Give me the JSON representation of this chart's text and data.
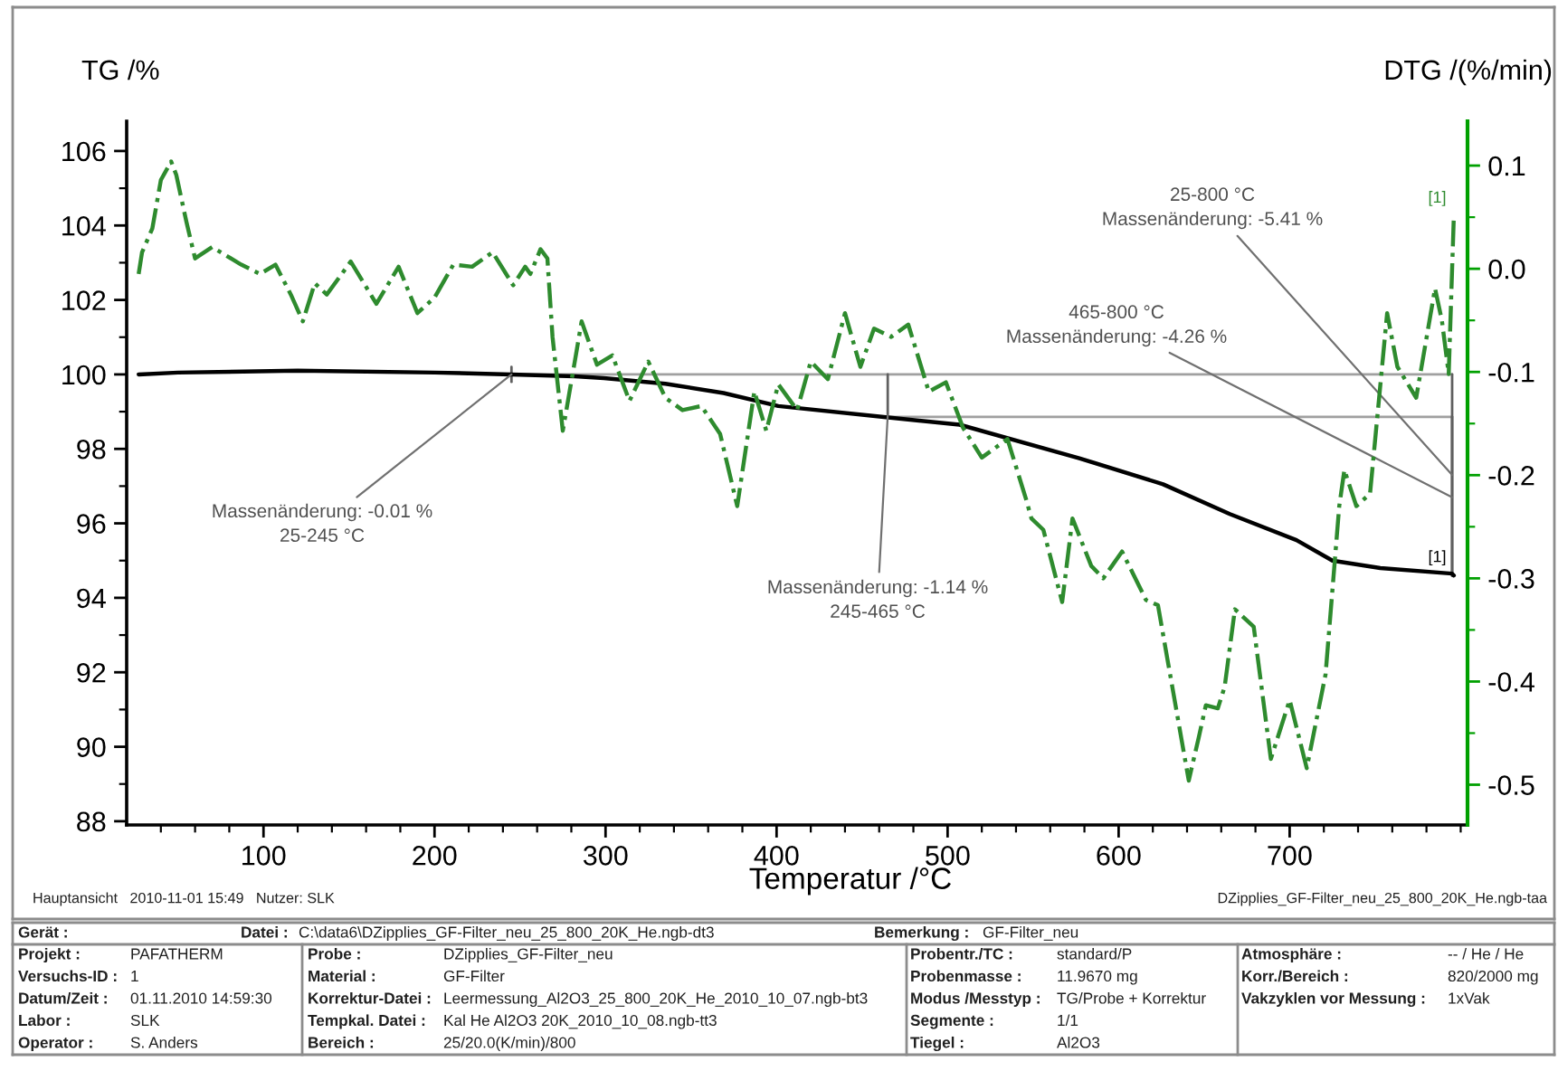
{
  "chart_data": {
    "type": "line",
    "xlabel": "Temperatur /°C",
    "ylabel": "TG /%",
    "y2label": "DTG /(%/min)",
    "xlim": [
      20,
      804
    ],
    "xticks": [
      {
        "value": 40,
        "label": null
      },
      {
        "value": 60,
        "label": null
      },
      {
        "value": 80,
        "label": null
      },
      100,
      {
        "value": 120,
        "label": null
      },
      {
        "value": 140,
        "label": null
      },
      {
        "value": 160,
        "label": null
      },
      {
        "value": 180,
        "label": null
      },
      200,
      {
        "value": 220,
        "label": null
      },
      {
        "value": 240,
        "label": null
      },
      {
        "value": 260,
        "label": null
      },
      {
        "value": 280,
        "label": null
      },
      300,
      {
        "value": 320,
        "label": null
      },
      {
        "value": 340,
        "label": null
      },
      {
        "value": 360,
        "label": null
      },
      {
        "value": 380,
        "label": null
      },
      400,
      {
        "value": 420,
        "label": null
      },
      {
        "value": 440,
        "label": null
      },
      {
        "value": 460,
        "label": null
      },
      {
        "value": 480,
        "label": null
      },
      500,
      {
        "value": 520,
        "label": null
      },
      {
        "value": 540,
        "label": null
      },
      {
        "value": 560,
        "label": null
      },
      {
        "value": 580,
        "label": null
      },
      600,
      {
        "value": 620,
        "label": null
      },
      {
        "value": 640,
        "label": null
      },
      {
        "value": 660,
        "label": null
      },
      {
        "value": 680,
        "label": null
      },
      700,
      {
        "value": 720,
        "label": null
      },
      {
        "value": 740,
        "label": null
      },
      {
        "value": 760,
        "label": null
      },
      {
        "value": 780,
        "label": null
      },
      {
        "value": 800,
        "label": null
      }
    ],
    "ylim": [
      87.9,
      106.8
    ],
    "yticks": [
      88,
      {
        "value": 89,
        "label": null
      },
      90,
      {
        "value": 91,
        "label": null
      },
      92,
      {
        "value": 93,
        "label": null
      },
      94,
      {
        "value": 95,
        "label": null
      },
      96,
      {
        "value": 97,
        "label": null
      },
      98,
      {
        "value": 99,
        "label": null
      },
      100,
      {
        "value": 101,
        "label": null
      },
      102,
      {
        "value": 103,
        "label": null
      },
      104,
      {
        "value": 105,
        "label": null
      },
      106
    ],
    "y2lim": [
      -0.539,
      0.143
    ],
    "y2ticks": [
      -0.5,
      {
        "value": -0.45,
        "label": null
      },
      -0.4,
      {
        "value": -0.35,
        "label": null
      },
      -0.3,
      {
        "value": -0.25,
        "label": null
      },
      -0.2,
      {
        "value": -0.15,
        "label": null
      },
      -0.1,
      {
        "value": -0.05,
        "label": null
      },
      {
        "value": 0,
        "label": "0.0"
      },
      {
        "value": 0.05,
        "label": null
      },
      0.1
    ],
    "series": [
      {
        "name": "[1]",
        "axis": "y",
        "color": "#000000",
        "line_style": "solid",
        "x": [
          27,
          50,
          120,
          200,
          245,
          282,
          299,
          335,
          369,
          401,
          464,
          507,
          577,
          626,
          665,
          704,
          725,
          753,
          795,
          796
        ],
        "values": [
          100.0,
          100.05,
          100.1,
          100.05,
          100.0,
          99.95,
          99.9,
          99.75,
          99.5,
          99.15,
          98.85,
          98.65,
          97.75,
          97.05,
          96.25,
          95.55,
          95.0,
          94.8,
          94.65,
          94.6
        ]
      },
      {
        "name": "[1]",
        "axis": "y2",
        "color": "#2e8b2e",
        "line_style": "dashdot",
        "x": [
          27,
          29,
          35,
          40,
          46,
          49,
          55,
          60,
          70,
          87,
          98,
          107,
          116,
          123,
          130,
          137,
          151,
          166,
          179,
          190,
          200,
          211,
          222,
          234,
          246,
          253,
          256,
          262,
          266,
          269,
          275,
          282,
          286,
          295,
          304,
          314,
          325,
          335,
          345,
          356,
          367,
          377,
          387,
          394,
          401,
          412,
          420,
          430,
          440,
          449,
          457,
          467,
          477,
          489,
          499,
          509,
          520,
          535,
          546,
          549,
          556,
          567,
          573,
          584,
          591,
          602,
          616,
          623,
          641,
          647,
          651,
          658,
          662,
          668,
          679,
          689,
          700,
          710,
          721,
          729,
          732,
          739,
          747,
          757,
          763,
          774,
          785,
          789,
          793,
          796
        ],
        "values": [
          -0.005,
          0.016,
          0.039,
          0.086,
          0.104,
          0.091,
          0.045,
          0.01,
          0.021,
          0.004,
          -0.005,
          0.004,
          -0.025,
          -0.051,
          -0.014,
          -0.025,
          0.007,
          -0.034,
          0.002,
          -0.043,
          -0.028,
          0.004,
          0.002,
          0.016,
          -0.016,
          0.002,
          -0.005,
          0.019,
          0.01,
          -0.066,
          -0.157,
          -0.09,
          -0.051,
          -0.093,
          -0.084,
          -0.128,
          -0.09,
          -0.125,
          -0.137,
          -0.133,
          -0.16,
          -0.23,
          -0.119,
          -0.157,
          -0.112,
          -0.137,
          -0.09,
          -0.107,
          -0.043,
          -0.095,
          -0.058,
          -0.066,
          -0.054,
          -0.119,
          -0.11,
          -0.154,
          -0.183,
          -0.165,
          -0.224,
          -0.242,
          -0.253,
          -0.323,
          -0.242,
          -0.288,
          -0.3,
          -0.274,
          -0.321,
          -0.326,
          -0.496,
          -0.453,
          -0.423,
          -0.426,
          -0.405,
          -0.33,
          -0.347,
          -0.475,
          -0.418,
          -0.484,
          -0.393,
          -0.23,
          -0.195,
          -0.23,
          -0.218,
          -0.043,
          -0.095,
          -0.125,
          -0.019,
          -0.05,
          -0.102,
          0.051
        ]
      },
      {
        "axis": "y",
        "color": "#a0a0a0",
        "line_style": "solid",
        "x": [
          245,
          795
        ],
        "values": [
          100,
          100
        ]
      },
      {
        "axis": "y",
        "color": "#a0a0a0",
        "line_style": "solid",
        "x": [
          465,
          795
        ],
        "values": [
          98.86,
          98.86
        ]
      },
      {
        "axis": "y",
        "color": "#606060",
        "line_style": "solid",
        "x": [
          245,
          245
        ],
        "values": [
          100.2,
          99.8
        ]
      },
      {
        "axis": "y",
        "color": "#606060",
        "line_style": "solid",
        "x": [
          465,
          465
        ],
        "values": [
          100,
          98.86
        ]
      },
      {
        "axis": "y",
        "color": "#606060",
        "line_style": "solid",
        "x": [
          795,
          795
        ],
        "values": [
          100,
          94.59
        ]
      },
      {
        "axis": "y",
        "color": "#606060",
        "line_style": "solid",
        "x": [
          795,
          795
        ],
        "values": [
          98.86,
          94.59
        ]
      }
    ],
    "annotations": [
      {
        "text": "Massenänderung: -0.01 %\n25-245 °C",
        "x": 245,
        "y": 100
      },
      {
        "text": "Massenänderung: -1.14 %\n245-465 °C",
        "x": 465,
        "y": 98.9
      },
      {
        "text": "465-800 °C\nMassenänderung: -4.26 %",
        "x": 795,
        "y": 96.7
      },
      {
        "text": "25-800 °C\nMassenänderung: -5.41 %",
        "x": 795,
        "y": 97.3
      },
      "Hauptansicht   2010-11-01 15:49   Nutzer: SLK",
      "DZipplies_GF-Filter_neu_25_800_20K_He.ngb-taa",
      "Gerät :",
      "Datei :",
      "C:\\data6\\DZipplies_GF-Filter_neu_25_800_20K_He.ngb-dt3",
      "Bemerkung :",
      "GF-Filter_neu",
      "Projekt :",
      "PAFATHERM",
      "Probe :",
      "DZipplies_GF-Filter_neu",
      "Probentr./TC :",
      "standard/P",
      "Atmosphäre :",
      "-- / He / He",
      "Versuchs-ID :",
      "1",
      "Material :",
      "GF-Filter",
      "Probenmasse :",
      "11.9670 mg",
      "Korr./Bereich :",
      "820/2000 mg",
      "Datum/Zeit :",
      "01.11.2010 14:59:30",
      "Korrektur-Datei :",
      "Leermessung_Al2O3_25_800_20K_He_2010_10_07.ngb-bt3",
      "Modus /Messtyp :",
      "TG/Probe + Korrektur",
      "Vakzyklen vor Messung :",
      "1xVak",
      "Labor :",
      "SLK",
      "Tempkal. Datei :",
      "Kal He Al2O3 20K_2010_10_08.ngb-tt3",
      "Segmente :",
      "1/1",
      "Operator :",
      "S. Anders",
      "Bereich :",
      "25/20.0(K/min)/800",
      "Tiegel :",
      "Al2O3"
    ]
  }
}
